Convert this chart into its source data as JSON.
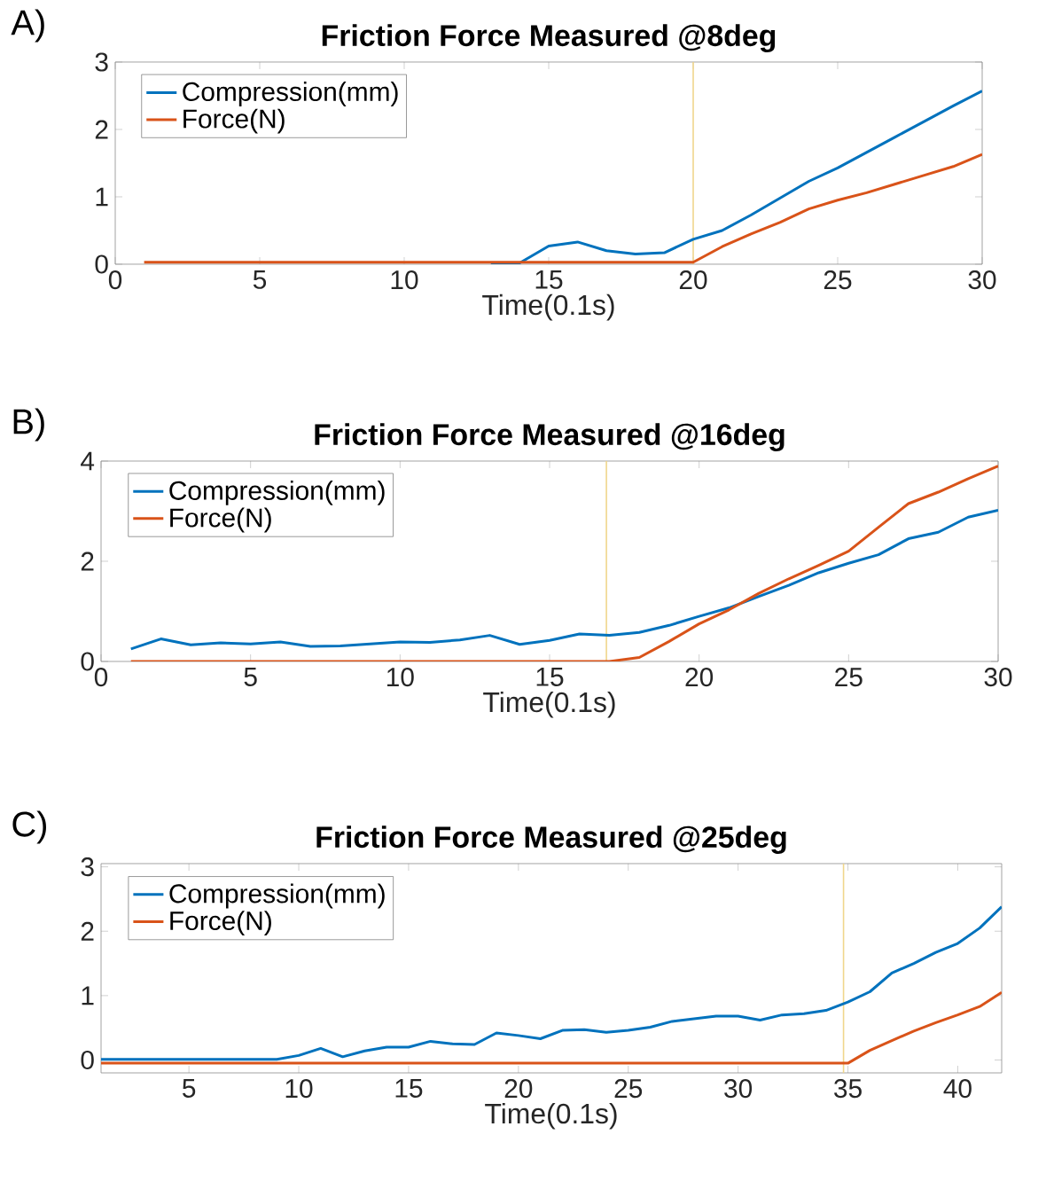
{
  "chart_data": [
    {
      "type": "line",
      "title": "Friction Force Measured @8deg",
      "xlabel": "Time(0.1s)",
      "annotations": [
        "A)"
      ],
      "x": [
        1,
        2,
        3,
        4,
        5,
        6,
        7,
        8,
        9,
        10,
        11,
        12,
        13,
        14,
        15,
        16,
        17,
        18,
        19,
        20,
        21,
        22,
        23,
        24,
        25,
        26,
        27,
        28,
        29,
        30
      ],
      "series": [
        {
          "name": "Compression(mm)",
          "color": "#0072bd",
          "values": [
            null,
            null,
            null,
            null,
            null,
            null,
            null,
            null,
            null,
            null,
            null,
            null,
            0,
            0.02,
            0.27,
            0.33,
            0.2,
            0.15,
            0.17,
            0.37,
            0.5,
            0.73,
            0.98,
            1.23,
            1.43,
            1.66,
            1.89,
            2.12,
            2.35,
            2.57
          ]
        },
        {
          "name": "Force(N)",
          "color": "#d95319",
          "values": [
            0.03,
            0.03,
            0.03,
            0.03,
            0.03,
            0.03,
            0.03,
            0.03,
            0.03,
            0.03,
            0.03,
            0.03,
            0.03,
            0.03,
            0.03,
            0.03,
            0.03,
            0.03,
            0.03,
            0.03,
            0.26,
            0.45,
            0.62,
            0.82,
            0.95,
            1.06,
            1.19,
            1.32,
            1.45,
            1.63
          ]
        }
      ],
      "xlim": [
        0,
        30
      ],
      "ylim": [
        0,
        3
      ],
      "xticks": [
        0,
        5,
        10,
        15,
        20,
        25,
        30
      ],
      "yticks": [
        0,
        1,
        2,
        3
      ],
      "ref_lines": [
        {
          "axis": "x",
          "value": 20,
          "color": "#f0d68c"
        }
      ],
      "legend": "top left"
    },
    {
      "type": "line",
      "title": "Friction Force Measured @16deg",
      "xlabel": "Time(0.1s)",
      "annotations": [
        "B)"
      ],
      "x": [
        1,
        2,
        3,
        4,
        5,
        6,
        7,
        8,
        9,
        10,
        11,
        12,
        13,
        14,
        15,
        16,
        17,
        18,
        19,
        20,
        21,
        22,
        23,
        24,
        25,
        26,
        27,
        28,
        29,
        30
      ],
      "series": [
        {
          "name": "Compression(mm)",
          "color": "#0072bd",
          "values": [
            0.25,
            0.45,
            0.33,
            0.37,
            0.35,
            0.39,
            0.3,
            0.31,
            0.35,
            0.39,
            0.38,
            0.43,
            0.52,
            0.34,
            0.42,
            0.55,
            0.52,
            0.58,
            0.72,
            0.9,
            1.07,
            1.3,
            1.52,
            1.77,
            1.96,
            2.13,
            2.45,
            2.58,
            2.88,
            3.02
          ]
        },
        {
          "name": "Force(N)",
          "color": "#d95319",
          "values": [
            0,
            0,
            0,
            0,
            0,
            0,
            0,
            0,
            0,
            0,
            0,
            0,
            0,
            0,
            0,
            0,
            0,
            0.08,
            0.4,
            0.75,
            1.03,
            1.36,
            1.65,
            1.92,
            2.2,
            2.68,
            3.15,
            3.38,
            3.65,
            3.9
          ]
        }
      ],
      "xlim": [
        0,
        30
      ],
      "ylim": [
        0,
        4
      ],
      "xticks": [
        0,
        5,
        10,
        15,
        20,
        25,
        30
      ],
      "yticks": [
        0,
        2,
        4
      ],
      "ref_lines": [
        {
          "axis": "x",
          "value": 16.9,
          "color": "#f0d68c"
        }
      ],
      "legend": "top left"
    },
    {
      "type": "line",
      "title": "Friction Force Measured @25deg",
      "xlabel": "Time(0.1s)",
      "annotations": [
        "C)"
      ],
      "x": [
        1,
        2,
        3,
        4,
        5,
        6,
        7,
        8,
        9,
        10,
        11,
        12,
        13,
        14,
        15,
        16,
        17,
        18,
        19,
        20,
        21,
        22,
        23,
        24,
        25,
        26,
        27,
        28,
        29,
        30,
        31,
        32,
        33,
        34,
        35,
        36,
        37,
        38,
        39,
        40,
        41,
        42
      ],
      "series": [
        {
          "name": "Compression(mm)",
          "color": "#0072bd",
          "values": [
            0.01,
            0.01,
            0.01,
            0.01,
            0.01,
            0.01,
            0.01,
            0.01,
            0.01,
            0.07,
            0.18,
            0.05,
            0.14,
            0.2,
            0.2,
            0.29,
            0.25,
            0.24,
            0.42,
            0.38,
            0.33,
            0.46,
            0.47,
            0.43,
            0.46,
            0.51,
            0.6,
            0.64,
            0.68,
            0.68,
            0.62,
            0.7,
            0.72,
            0.77,
            0.9,
            1.06,
            1.35,
            1.5,
            1.67,
            1.81,
            2.05,
            2.38
          ]
        },
        {
          "name": "Force(N)",
          "color": "#d95319",
          "values": [
            -0.05,
            -0.05,
            -0.05,
            -0.05,
            -0.05,
            -0.05,
            -0.05,
            -0.05,
            -0.05,
            -0.05,
            -0.05,
            -0.05,
            -0.05,
            -0.05,
            -0.05,
            -0.05,
            -0.05,
            -0.05,
            -0.05,
            -0.05,
            -0.05,
            -0.05,
            -0.05,
            -0.05,
            -0.05,
            -0.05,
            -0.05,
            -0.05,
            -0.05,
            -0.05,
            -0.05,
            -0.05,
            -0.05,
            -0.05,
            -0.05,
            0.15,
            0.3,
            0.45,
            0.58,
            0.7,
            0.83,
            1.05
          ]
        }
      ],
      "xlim": [
        1,
        42
      ],
      "ylim": [
        -0.2,
        3.05
      ],
      "xticks": [
        5,
        10,
        15,
        20,
        25,
        30,
        35,
        40
      ],
      "yticks": [
        0,
        1,
        2,
        3
      ],
      "ref_lines": [
        {
          "axis": "x",
          "value": 34.8,
          "color": "#f0d68c"
        }
      ],
      "legend": "top left"
    }
  ]
}
